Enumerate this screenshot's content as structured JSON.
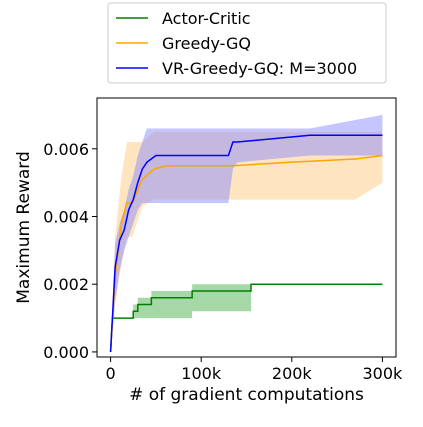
{
  "chart_data": {
    "type": "line",
    "title": "",
    "xlabel": "# of gradient computations",
    "ylabel": "Maximum Reward",
    "xlim": [
      -15000,
      315000
    ],
    "ylim": [
      -0.00015,
      0.0075
    ],
    "x_ticks": [
      0,
      100000,
      200000,
      300000
    ],
    "x_tick_labels": [
      "0",
      "100k",
      "200k",
      "300k"
    ],
    "y_ticks": [
      0.0,
      0.002,
      0.004,
      0.006
    ],
    "y_tick_labels": [
      "0.000",
      "0.002",
      "0.004",
      "0.006"
    ],
    "grid": false,
    "legend_position": "above plot, centered",
    "series": [
      {
        "name": "Actor-Critic",
        "color": "#008000",
        "band_color": "#4caf50",
        "x": [
          0,
          2000,
          25000,
          25000,
          30000,
          30000,
          45000,
          45000,
          90000,
          90000,
          155000,
          155000,
          300000
        ],
        "mean": [
          0.0,
          0.001,
          0.001,
          0.0012,
          0.0012,
          0.0014,
          0.0014,
          0.0016,
          0.0016,
          0.0018,
          0.0018,
          0.002,
          0.002
        ],
        "lower": [
          0.0,
          0.001,
          0.001,
          0.001,
          0.001,
          0.001,
          0.001,
          0.001,
          0.001,
          0.0012,
          0.0012,
          0.002,
          0.002
        ],
        "upper": [
          0.0,
          0.001,
          0.001,
          0.0014,
          0.0014,
          0.0016,
          0.0016,
          0.0018,
          0.0018,
          0.002,
          0.002,
          0.002,
          0.002
        ]
      },
      {
        "name": "Greedy-GQ",
        "color": "#ffa500",
        "band_color": "#ffcc80",
        "x": [
          0,
          5000,
          12000,
          18000,
          24000,
          35000,
          48000,
          62000,
          135000,
          195000,
          270000,
          300000
        ],
        "mean": [
          0.0,
          0.0022,
          0.0038,
          0.0044,
          0.0044,
          0.0051,
          0.0054,
          0.0055,
          0.0055,
          0.0056,
          0.0057,
          0.0058
        ],
        "lower": [
          0.0,
          0.0014,
          0.0026,
          0.0034,
          0.0034,
          0.0043,
          0.0045,
          0.0045,
          0.0045,
          0.0045,
          0.0045,
          0.005
        ],
        "upper": [
          0.0,
          0.0034,
          0.0052,
          0.0062,
          0.0062,
          0.0062,
          0.0065,
          0.0065,
          0.0065,
          0.0065,
          0.0065,
          0.0065
        ]
      },
      {
        "name": "VR-Greedy-GQ: M=3000",
        "color": "#0000ff",
        "band_color": "#8c8cff",
        "x": [
          0,
          5000,
          10000,
          15000,
          20000,
          25000,
          30000,
          35000,
          40000,
          50000,
          60000,
          130000,
          135000,
          140000,
          220000,
          300000
        ],
        "mean": [
          0.0,
          0.0025,
          0.0033,
          0.0036,
          0.0042,
          0.0045,
          0.005,
          0.0054,
          0.0056,
          0.0058,
          0.0058,
          0.0058,
          0.0062,
          0.0062,
          0.0064,
          0.0064
        ],
        "lower": [
          0.0,
          0.0015,
          0.0024,
          0.003,
          0.0034,
          0.0038,
          0.0042,
          0.0044,
          0.0044,
          0.0044,
          0.0044,
          0.0044,
          0.0054,
          0.0056,
          0.0058,
          0.0058
        ],
        "upper": [
          0.0,
          0.0032,
          0.0038,
          0.0042,
          0.0048,
          0.0052,
          0.0058,
          0.0062,
          0.0066,
          0.0066,
          0.0066,
          0.0066,
          0.0066,
          0.0066,
          0.0066,
          0.007
        ]
      }
    ]
  }
}
